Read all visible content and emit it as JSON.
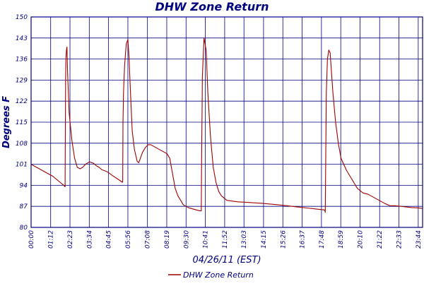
{
  "chart_data": {
    "type": "line",
    "title": "DHW Zone Return",
    "xlabel": "04/26/11 (EST)",
    "ylabel": "Degrees F",
    "ylim": [
      80,
      150
    ],
    "yticks": [
      "80",
      "87",
      "94",
      "101",
      "108",
      "115",
      "122",
      "129",
      "136",
      "143",
      "150"
    ],
    "xlim": [
      0,
      1440
    ],
    "xticks": [
      "00:00",
      "01:12",
      "02:23",
      "03:34",
      "04:45",
      "05:56",
      "07:08",
      "08:19",
      "09:30",
      "10:41",
      "11:52",
      "13:03",
      "14:15",
      "15:26",
      "16:37",
      "17:48",
      "18:59",
      "20:10",
      "21:22",
      "22:33",
      "23:44"
    ],
    "grid": true,
    "legend_position": "bottom-center",
    "series": [
      {
        "name": "DHW Zone Return",
        "color": "#a00000",
        "x": [
          0,
          20,
          40,
          60,
          80,
          100,
          120,
          125,
          127,
          128,
          130,
          132,
          134,
          140,
          150,
          160,
          170,
          180,
          190,
          200,
          215,
          230,
          240,
          250,
          260,
          280,
          300,
          320,
          336,
          337,
          338,
          340,
          344,
          350,
          356,
          360,
          366,
          372,
          380,
          390,
          396,
          402,
          410,
          420,
          430,
          440,
          450,
          460,
          470,
          480,
          490,
          500,
          510,
          520,
          530,
          540,
          550,
          560,
          570,
          580,
          600,
          620,
          626,
          627,
          630,
          636,
          644,
          650,
          660,
          670,
          680,
          690,
          700,
          720,
          760,
          800,
          850,
          900,
          940,
          980,
          1020,
          1050,
          1080,
          1082,
          1083,
          1086,
          1090,
          1095,
          1100,
          1110,
          1120,
          1130,
          1140,
          1160,
          1180,
          1200,
          1220,
          1240,
          1260,
          1280,
          1300,
          1320,
          1340,
          1360,
          1380,
          1400,
          1420,
          1440
        ],
        "y": [
          101,
          100,
          99,
          98,
          97,
          95.5,
          94,
          93.5,
          130,
          136,
          139,
          140,
          132,
          118,
          109,
          103,
          100,
          99.5,
          100,
          101,
          101.8,
          101.3,
          100.5,
          100,
          99.2,
          98.5,
          97.2,
          96,
          95,
          95.5,
          115,
          125,
          134,
          141,
          142.5,
          137,
          124,
          112,
          106,
          102,
          101.5,
          103,
          105,
          106.5,
          107.5,
          107.5,
          107,
          106.5,
          106,
          105.5,
          105,
          104.5,
          103,
          98,
          93,
          90.5,
          89,
          87.5,
          87,
          86.5,
          86,
          85.5,
          85.5,
          100,
          130,
          143,
          139,
          125,
          110,
          100,
          95,
          92,
          90.5,
          89,
          88.5,
          88.3,
          88,
          87.6,
          87.2,
          86.8,
          86.4,
          86.1,
          85.8,
          85,
          95,
          125,
          136,
          139,
          138,
          125,
          115,
          108,
          103,
          99,
          96,
          93,
          91.5,
          91,
          90,
          89,
          88,
          87.2,
          87.2,
          87,
          86.8,
          86.6,
          86.5,
          86.3
        ]
      }
    ]
  }
}
